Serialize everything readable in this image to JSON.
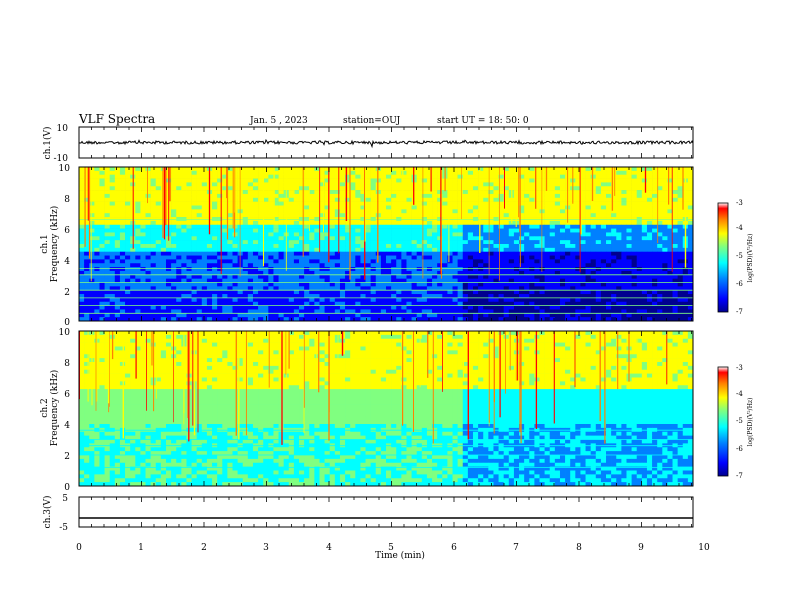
{
  "header": {
    "title": "VLF Spectra",
    "date": "Jan. 5 , 2023",
    "station": "station=OUJ",
    "start": "start UT =  18: 50: 0"
  },
  "chart_data": [
    {
      "type": "line",
      "panel": "ch1-waveform",
      "ylabel": "ch.1(V)",
      "yticks": [
        "10",
        "-10"
      ],
      "ylim": [
        -10,
        10
      ],
      "xlim": [
        0,
        10
      ],
      "trace_level": 0,
      "trace_spread": 1.5
    },
    {
      "type": "heatmap",
      "panel": "ch1-spectrogram",
      "ylabel_line1": "ch.1",
      "ylabel_line2": "Frequency (kHz)",
      "yticks": [
        "0",
        "2",
        "4",
        "6",
        "8",
        "10"
      ],
      "ylim": [
        0,
        10
      ],
      "xlim": [
        0,
        10
      ],
      "colorbar": {
        "label": "log(PSD)(V²/Hz)",
        "ticks": [
          "-3",
          "-4",
          "-5",
          "-6",
          "-7"
        ],
        "range": [
          -7,
          -3
        ]
      }
    },
    {
      "type": "heatmap",
      "panel": "ch2-spectrogram",
      "ylabel_line1": "ch.2",
      "ylabel_line2": "Frequency (kHz)",
      "yticks": [
        "0",
        "2",
        "4",
        "6",
        "8",
        "10"
      ],
      "ylim": [
        0,
        10
      ],
      "xlim": [
        0,
        10
      ],
      "colorbar": {
        "label": "log(PSD)(V²/Hz)",
        "ticks": [
          "-3",
          "-4",
          "-5",
          "-6",
          "-7"
        ],
        "range": [
          -7,
          -3
        ]
      }
    },
    {
      "type": "line",
      "panel": "ch3-waveform",
      "ylabel": "ch.3(V)",
      "yticks": [
        "5",
        "-5"
      ],
      "ylim": [
        -5,
        5
      ],
      "xlim": [
        0,
        10
      ],
      "trace_level": -2
    }
  ],
  "xaxis": {
    "label": "Time (min)",
    "ticks": [
      "0",
      "1",
      "2",
      "3",
      "4",
      "5",
      "6",
      "7",
      "8",
      "9",
      "10"
    ]
  },
  "colors": {
    "jet": [
      "#00008f",
      "#0000ff",
      "#0080ff",
      "#00ffff",
      "#80ff80",
      "#ffff00",
      "#ff8000",
      "#ff0000",
      "#800000"
    ]
  }
}
